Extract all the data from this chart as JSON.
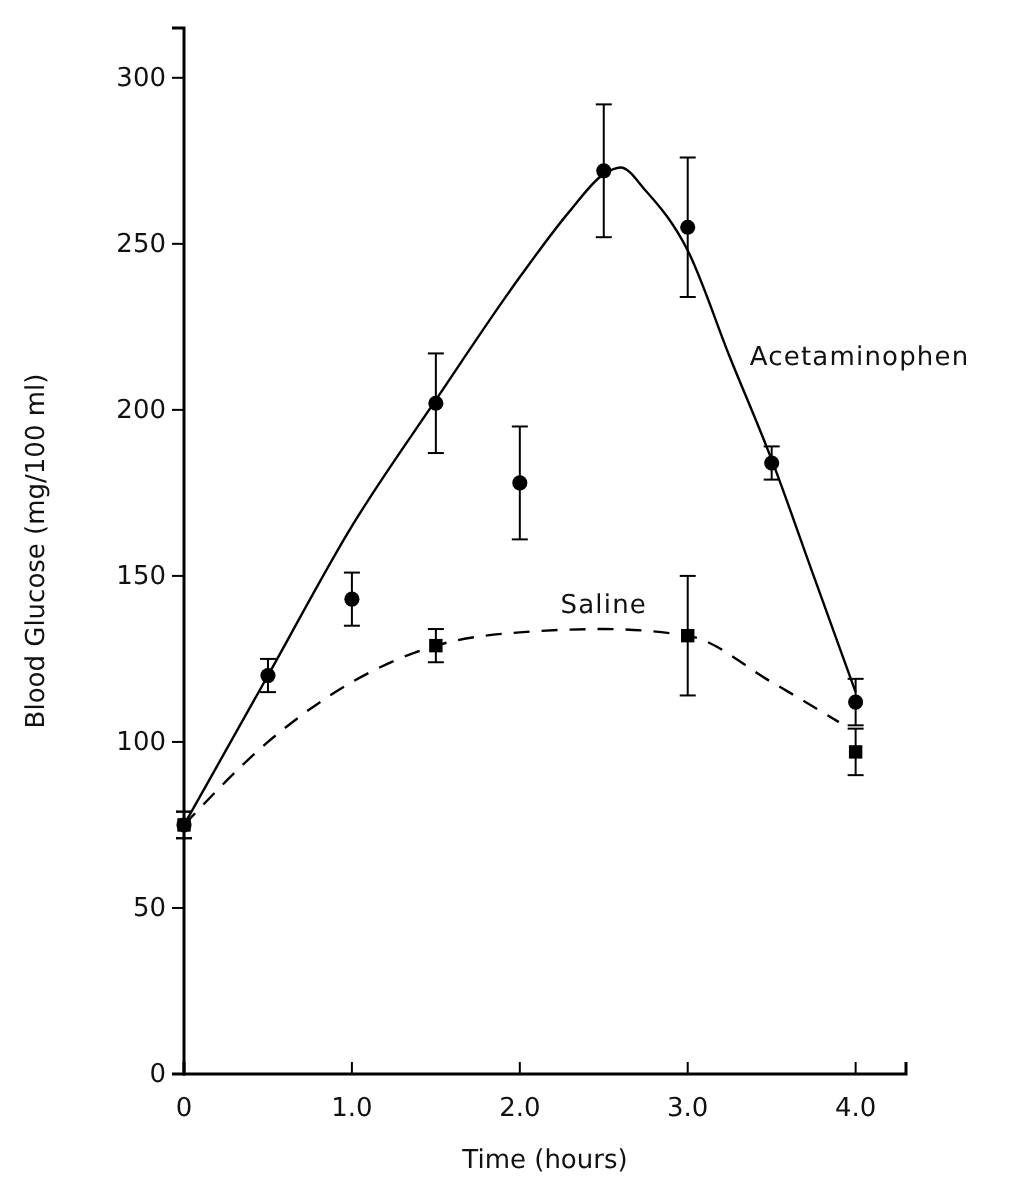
{
  "chart_data": {
    "type": "scatter",
    "xlabel": "Time (hours)",
    "ylabel": "Blood Glucose (mg/100 ml)",
    "xlim": [
      0,
      4.3
    ],
    "xticks": [
      0,
      {
        "value": 1,
        "label": "1.0"
      },
      {
        "value": 2,
        "label": "2.0"
      },
      {
        "value": 3,
        "label": "3.0"
      },
      {
        "value": 4,
        "label": "4.0"
      }
    ],
    "ylim": [
      0,
      315
    ],
    "yticks": [
      0,
      50,
      100,
      150,
      200,
      250,
      300
    ],
    "grid": false,
    "series": [
      {
        "marker": "circle",
        "color": "#000000",
        "x": [
          0,
          0.5,
          1,
          1.5,
          2,
          2.5,
          3,
          3.5,
          4
        ],
        "values": [
          75,
          120,
          143,
          202,
          178,
          272,
          255,
          184,
          112
        ],
        "errors": [
          4,
          5,
          8,
          15,
          17,
          20,
          21,
          5,
          7
        ]
      },
      {
        "marker": "square",
        "color": "#000000",
        "x": [
          0,
          1.5,
          3,
          4
        ],
        "values": [
          75,
          129,
          132,
          97
        ],
        "errors": [
          4,
          5,
          18,
          7
        ]
      },
      {
        "type": "line",
        "name": "Acetaminophen",
        "line_style": "solid",
        "marker": "none",
        "color": "#000000",
        "x": [
          0,
          0.5,
          1,
          1.5,
          2,
          2.3,
          2.5,
          2.6,
          2.75,
          3,
          3.25,
          3.5,
          3.75,
          4
        ],
        "values": [
          75,
          120,
          165,
          203,
          240,
          260,
          271,
          273,
          266,
          248,
          216,
          185,
          150,
          115
        ]
      },
      {
        "type": "line",
        "name": "Saline",
        "line_style": "dashed",
        "marker": "none",
        "color": "#000000",
        "x": [
          0,
          0.5,
          1,
          1.5,
          2,
          2.5,
          3,
          3.5,
          3.9
        ],
        "values": [
          75,
          100,
          118,
          129,
          133,
          134,
          132,
          118,
          106
        ]
      }
    ]
  }
}
